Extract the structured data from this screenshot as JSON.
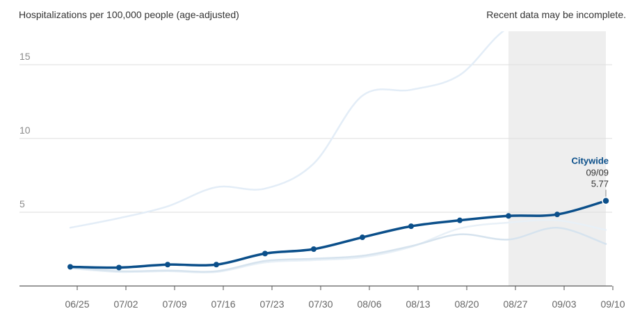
{
  "chart_data": {
    "type": "line",
    "title": "Hospitalizations per 100,000 people (age-adjusted)",
    "note": "Recent data may be incomplete.",
    "x_ticks": [
      "06/25",
      "07/02",
      "07/09",
      "07/16",
      "07/23",
      "07/30",
      "08/06",
      "08/13",
      "08/20",
      "08/27",
      "09/03",
      "09/10"
    ],
    "y_ticks": [
      5,
      10,
      15
    ],
    "ylim": [
      0,
      17.5
    ],
    "grid": true,
    "incomplete_from": "08/27",
    "series": [
      {
        "name": "Citywide",
        "color": "#0b4f8a",
        "highlight": true,
        "x": [
          "06/24",
          "07/01",
          "07/08",
          "07/15",
          "07/22",
          "07/29",
          "08/05",
          "08/12",
          "08/19",
          "08/26",
          "09/02",
          "09/09"
        ],
        "values": [
          1.3,
          1.25,
          1.45,
          1.45,
          2.2,
          2.5,
          3.3,
          4.05,
          4.45,
          4.75,
          4.85,
          5.77
        ]
      },
      {
        "color": "#e3edf7",
        "x": [
          "06/24",
          "07/01",
          "07/08",
          "07/15",
          "07/22",
          "07/29",
          "08/05",
          "08/12",
          "08/19",
          "08/26",
          "09/02",
          "09/09"
        ],
        "values": [
          3.95,
          4.6,
          5.4,
          6.7,
          6.6,
          8.3,
          12.9,
          13.3,
          14.3,
          17.5,
          17.6,
          17.6
        ]
      },
      {
        "color": "#e8f0f7",
        "x": [
          "06/24",
          "07/01",
          "07/08",
          "07/15",
          "07/22",
          "07/29",
          "08/05",
          "08/12",
          "08/19",
          "08/26",
          "09/02",
          "09/09"
        ],
        "values": [
          1.2,
          0.95,
          1.0,
          0.95,
          1.6,
          1.75,
          1.95,
          2.65,
          3.9,
          4.3,
          4.45,
          3.8
        ]
      },
      {
        "color": "#d6e3ee",
        "x": [
          "06/24",
          "07/01",
          "07/08",
          "07/15",
          "07/22",
          "07/29",
          "08/05",
          "08/12",
          "08/19",
          "08/26",
          "09/02",
          "09/09"
        ],
        "values": [
          1.25,
          1.0,
          1.05,
          1.0,
          1.7,
          1.85,
          2.05,
          2.7,
          3.5,
          3.15,
          3.95,
          2.85
        ]
      }
    ],
    "annotation": {
      "name": "Citywide",
      "date": "09/09",
      "value": "5.77"
    }
  }
}
